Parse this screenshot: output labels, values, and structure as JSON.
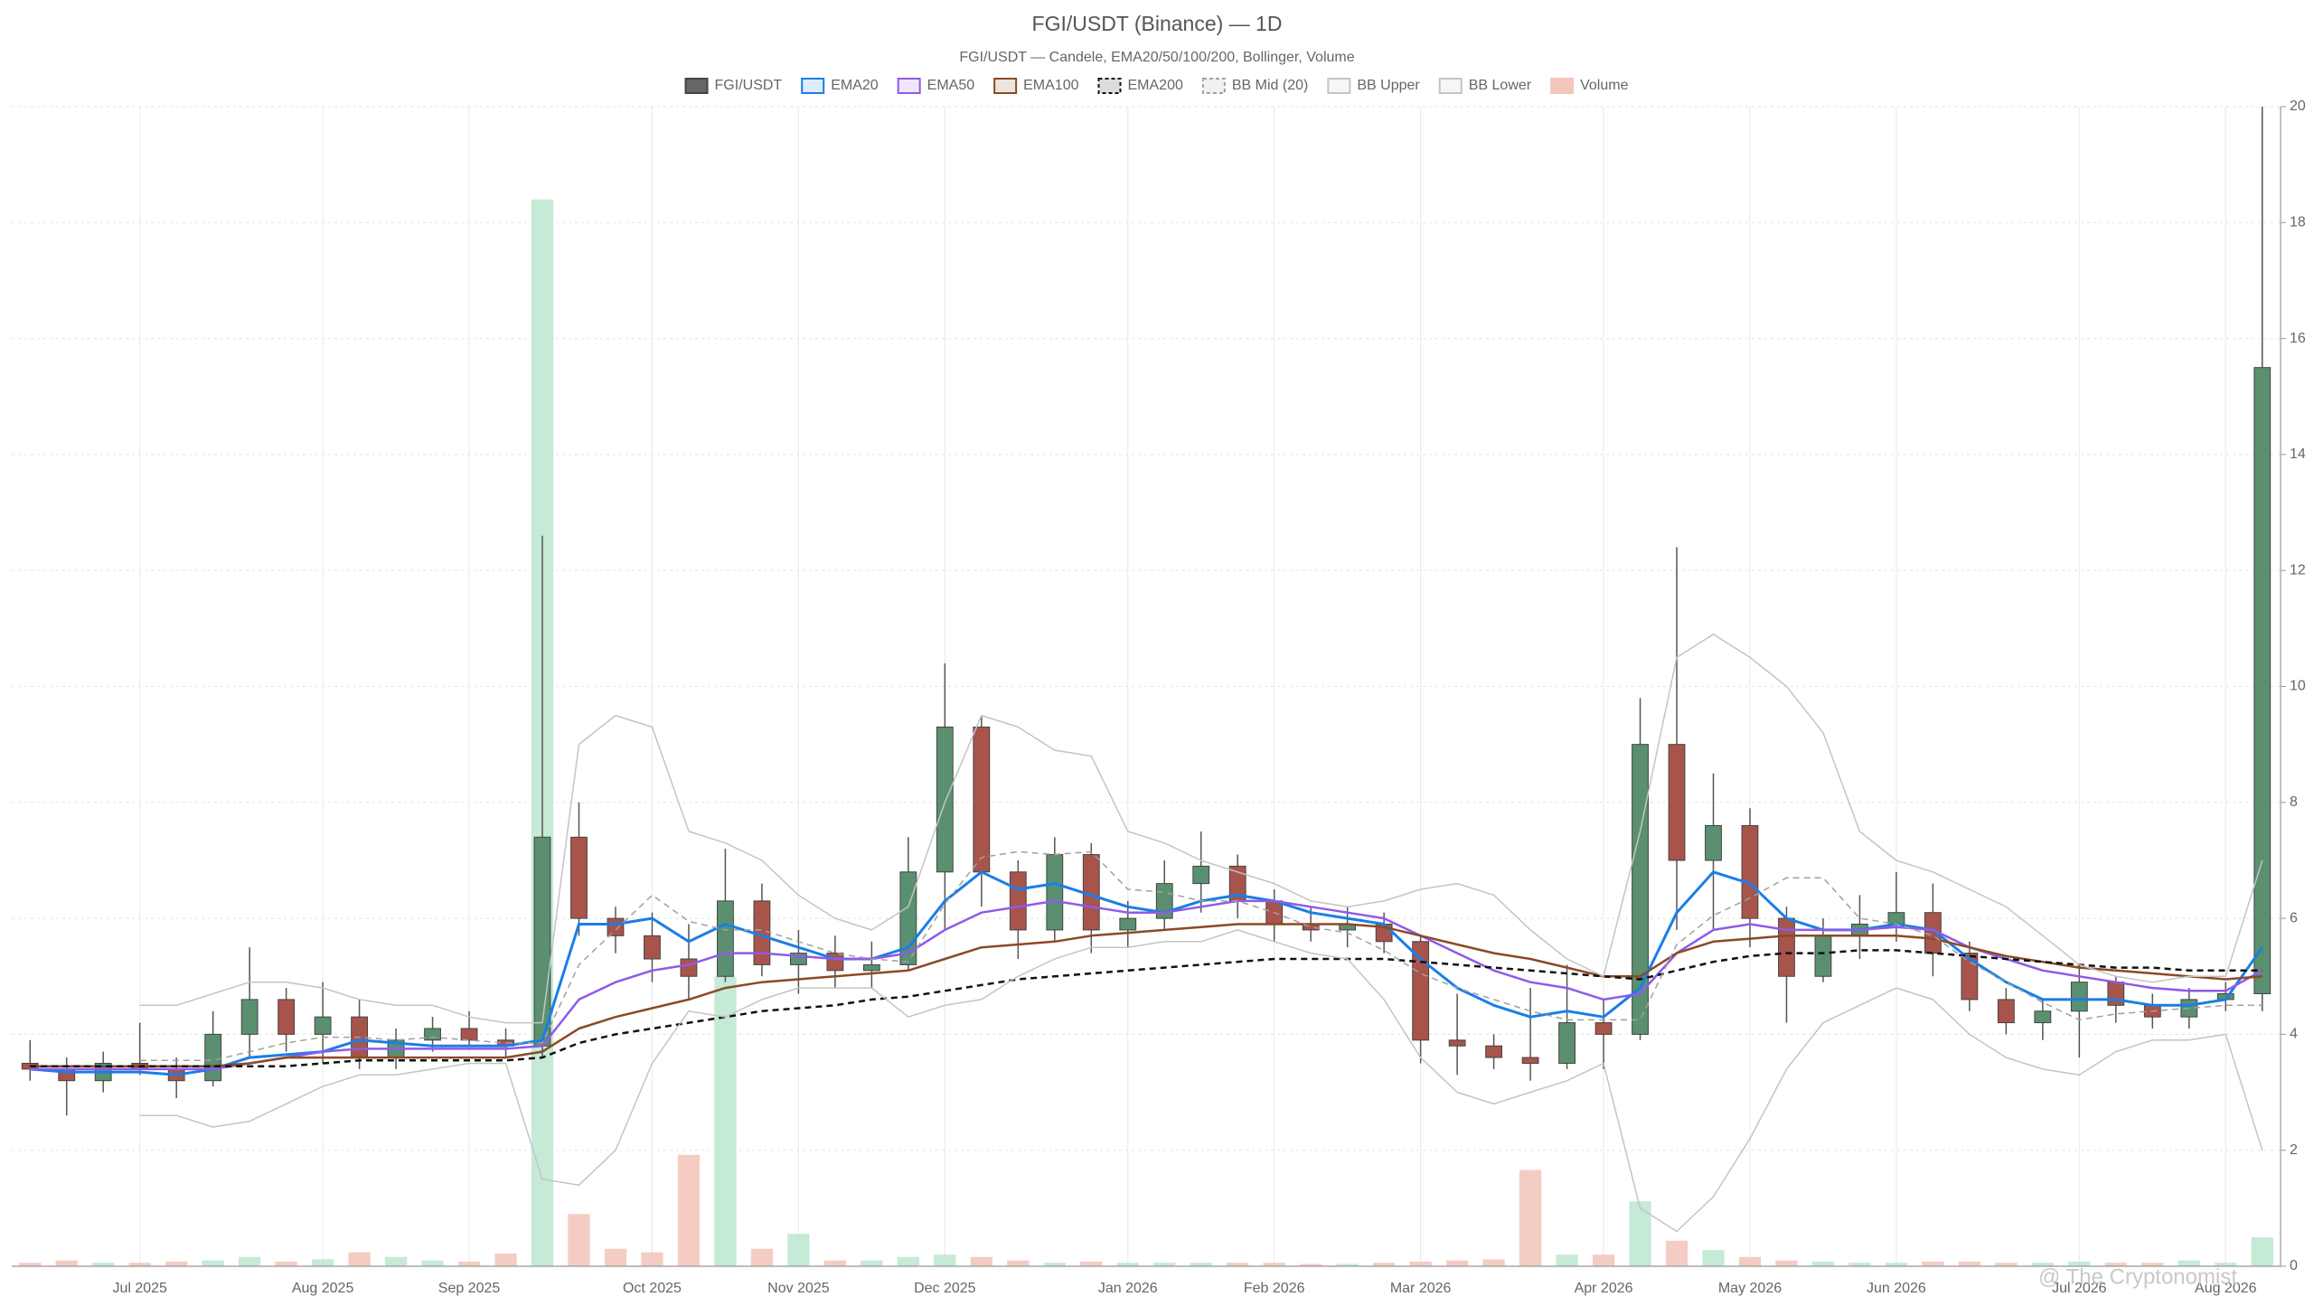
{
  "chart_data": {
    "type": "candlestick",
    "title": "FGI/USDT (Binance) — 1D",
    "subtitle": "FGI/USDT — Candele, EMA20/50/100/200, Bollinger, Volume",
    "watermark": "@ The Cryptonomist",
    "categories": [
      null,
      null,
      null,
      "Jul 2025",
      null,
      null,
      null,
      null,
      "Aug 2025",
      null,
      null,
      null,
      "Sep 2025",
      null,
      null,
      null,
      null,
      "Oct 2025",
      null,
      null,
      null,
      "Nov 2025",
      null,
      null,
      null,
      "Dec 2025",
      null,
      null,
      null,
      null,
      "Jan 2026",
      null,
      null,
      null,
      "Feb 2026",
      null,
      null,
      null,
      "Mar 2026",
      null,
      null,
      null,
      null,
      "Apr 2026",
      null,
      null,
      null,
      "May 2026",
      null,
      null,
      null,
      "Jun 2026",
      null,
      null,
      null,
      null,
      "Jul 2026",
      null,
      null,
      null,
      "Aug 2026",
      null
    ],
    "ylim": [
      0,
      20
    ],
    "yticks": [
      0,
      2,
      4,
      6,
      8,
      10,
      12,
      14,
      16,
      18,
      20
    ],
    "y2lim": [
      0,
      100
    ],
    "grid": true,
    "legend": "top",
    "series": [
      {
        "name": "FGI/USDT",
        "type": "candlestick",
        "color": "#666666",
        "up_color": "#5a9070",
        "down_color": "#a8544b",
        "open": [
          3.5,
          3.4,
          3.2,
          3.5,
          3.4,
          3.2,
          4.0,
          4.6,
          4.0,
          4.3,
          3.6,
          3.9,
          4.1,
          3.9,
          3.8,
          7.4,
          6.0,
          5.7,
          5.3,
          5.0,
          6.3,
          5.2,
          5.4,
          5.1,
          5.2,
          6.8,
          9.3,
          6.8,
          5.8,
          7.1,
          5.8,
          6.0,
          6.6,
          6.9,
          6.3,
          5.9,
          5.8,
          5.9,
          5.6,
          3.9,
          3.8,
          3.6,
          3.5,
          4.2,
          4.0,
          9.0,
          7.0,
          7.6,
          6.0,
          5.0,
          5.7,
          5.9,
          6.1,
          5.4,
          4.6,
          4.2,
          4.4,
          4.9,
          4.5,
          4.3,
          4.6,
          4.7
        ],
        "high": [
          3.9,
          3.6,
          3.7,
          4.2,
          3.6,
          4.4,
          5.5,
          4.8,
          4.9,
          4.6,
          4.1,
          4.3,
          4.4,
          4.1,
          12.6,
          8.0,
          6.2,
          6.1,
          5.9,
          7.2,
          6.6,
          5.8,
          5.7,
          5.6,
          7.4,
          10.4,
          9.5,
          7.0,
          7.4,
          7.3,
          6.3,
          7.0,
          7.5,
          7.1,
          6.5,
          6.2,
          6.2,
          6.1,
          5.7,
          4.7,
          4.0,
          4.8,
          5.2,
          4.6,
          9.8,
          12.4,
          8.5,
          7.9,
          6.2,
          6.0,
          6.4,
          6.8,
          6.6,
          5.6,
          4.8,
          4.6,
          5.2,
          5.0,
          4.7,
          4.8,
          4.9,
          20
        ],
        "low": [
          3.2,
          2.6,
          3.0,
          3.3,
          2.9,
          3.1,
          3.6,
          3.7,
          3.5,
          3.4,
          3.4,
          3.7,
          3.8,
          3.6,
          3.6,
          5.7,
          5.4,
          4.9,
          4.6,
          4.9,
          5.0,
          4.7,
          4.8,
          4.8,
          5.1,
          5.8,
          6.2,
          5.3,
          5.6,
          5.4,
          5.5,
          5.8,
          6.1,
          6.0,
          5.6,
          5.6,
          5.5,
          5.4,
          3.5,
          3.3,
          3.4,
          3.2,
          3.4,
          3.4,
          3.9,
          5.8,
          5.8,
          5.5,
          4.2,
          4.9,
          5.3,
          5.6,
          5.0,
          4.4,
          4.0,
          3.9,
          3.6,
          4.2,
          4.1,
          4.1,
          4.4,
          4.4
        ],
        "close": [
          3.4,
          3.2,
          3.5,
          3.4,
          3.2,
          4.0,
          4.6,
          4.0,
          4.3,
          3.6,
          3.9,
          4.1,
          3.9,
          3.8,
          7.4,
          6.0,
          5.7,
          5.3,
          5.0,
          6.3,
          5.2,
          5.4,
          5.1,
          5.2,
          6.8,
          9.3,
          6.8,
          5.8,
          7.1,
          5.8,
          6.0,
          6.6,
          6.9,
          6.3,
          5.9,
          5.8,
          5.9,
          5.6,
          3.9,
          3.8,
          3.6,
          3.5,
          4.2,
          4.0,
          9.0,
          7.0,
          7.6,
          6.0,
          5.0,
          5.7,
          5.9,
          6.1,
          5.4,
          4.6,
          4.2,
          4.4,
          4.9,
          4.5,
          4.3,
          4.6,
          4.7,
          15.5
        ]
      },
      {
        "name": "EMA20",
        "type": "line",
        "color": "#1a7ee6",
        "width": 3,
        "values": [
          3.4,
          3.35,
          3.35,
          3.35,
          3.3,
          3.4,
          3.6,
          3.65,
          3.7,
          3.9,
          3.85,
          3.8,
          3.8,
          3.8,
          3.9,
          5.9,
          5.9,
          6.0,
          5.6,
          5.9,
          5.7,
          5.5,
          5.3,
          5.3,
          5.5,
          6.3,
          6.8,
          6.5,
          6.6,
          6.4,
          6.2,
          6.1,
          6.3,
          6.4,
          6.3,
          6.1,
          6.0,
          5.9,
          5.3,
          4.8,
          4.5,
          4.3,
          4.4,
          4.3,
          4.8,
          6.1,
          6.8,
          6.6,
          6.0,
          5.8,
          5.8,
          5.9,
          5.8,
          5.3,
          4.9,
          4.6,
          4.6,
          4.6,
          4.5,
          4.5,
          4.6,
          5.5
        ]
      },
      {
        "name": "EMA50",
        "type": "line",
        "color": "#8f5ae8",
        "width": 2.5,
        "values": [
          3.4,
          3.4,
          3.4,
          3.4,
          3.4,
          3.4,
          3.5,
          3.6,
          3.7,
          3.75,
          3.75,
          3.75,
          3.75,
          3.75,
          3.8,
          4.6,
          4.9,
          5.1,
          5.2,
          5.4,
          5.4,
          5.35,
          5.3,
          5.3,
          5.4,
          5.8,
          6.1,
          6.2,
          6.3,
          6.2,
          6.1,
          6.1,
          6.2,
          6.3,
          6.3,
          6.2,
          6.1,
          6.0,
          5.7,
          5.4,
          5.1,
          4.9,
          4.8,
          4.6,
          4.7,
          5.4,
          5.8,
          5.9,
          5.8,
          5.8,
          5.8,
          5.85,
          5.8,
          5.5,
          5.3,
          5.1,
          5.0,
          4.9,
          4.8,
          4.75,
          4.75,
          5.1
        ]
      },
      {
        "name": "EMA100",
        "type": "line",
        "color": "#8b4a25",
        "width": 2.5,
        "values": [
          3.45,
          3.45,
          3.45,
          3.45,
          3.45,
          3.45,
          3.5,
          3.6,
          3.6,
          3.6,
          3.6,
          3.6,
          3.6,
          3.6,
          3.7,
          4.1,
          4.3,
          4.45,
          4.6,
          4.8,
          4.9,
          4.95,
          5.0,
          5.05,
          5.1,
          5.3,
          5.5,
          5.55,
          5.6,
          5.7,
          5.75,
          5.8,
          5.85,
          5.9,
          5.9,
          5.9,
          5.9,
          5.85,
          5.7,
          5.55,
          5.4,
          5.3,
          5.15,
          5.0,
          5.0,
          5.4,
          5.6,
          5.65,
          5.7,
          5.7,
          5.7,
          5.7,
          5.65,
          5.5,
          5.35,
          5.25,
          5.15,
          5.1,
          5.05,
          5.0,
          4.95,
          5.0
        ]
      },
      {
        "name": "EMA200",
        "type": "line",
        "color": "#111111",
        "width": 2.5,
        "dash": true,
        "values": [
          3.45,
          3.45,
          3.45,
          3.45,
          3.45,
          3.45,
          3.45,
          3.45,
          3.5,
          3.55,
          3.55,
          3.55,
          3.55,
          3.55,
          3.6,
          3.85,
          4.0,
          4.1,
          4.2,
          4.3,
          4.4,
          4.45,
          4.5,
          4.6,
          4.65,
          4.75,
          4.85,
          4.95,
          5.0,
          5.05,
          5.1,
          5.15,
          5.2,
          5.25,
          5.3,
          5.3,
          5.3,
          5.3,
          5.25,
          5.2,
          5.15,
          5.1,
          5.05,
          5.0,
          4.95,
          5.1,
          5.25,
          5.35,
          5.4,
          5.4,
          5.45,
          5.45,
          5.4,
          5.35,
          5.3,
          5.25,
          5.2,
          5.15,
          5.15,
          5.1,
          5.1,
          5.1
        ]
      },
      {
        "name": "BB Mid (20)",
        "type": "line",
        "color": "#a0a0a0",
        "width": 1.5,
        "dash": true,
        "values": [
          null,
          null,
          null,
          3.55,
          3.55,
          3.55,
          3.7,
          3.85,
          3.95,
          3.95,
          3.9,
          3.95,
          3.9,
          3.85,
          3.85,
          5.2,
          5.8,
          6.4,
          5.95,
          5.8,
          5.8,
          5.6,
          5.4,
          5.3,
          5.25,
          6.25,
          7.05,
          7.15,
          7.1,
          7.15,
          6.5,
          6.45,
          6.3,
          6.3,
          6.1,
          5.85,
          5.75,
          5.45,
          5.05,
          4.8,
          4.6,
          4.4,
          4.25,
          4.25,
          4.25,
          5.55,
          6.05,
          6.35,
          6.7,
          6.7,
          6.0,
          5.9,
          5.7,
          5.25,
          4.9,
          4.55,
          4.25,
          4.35,
          4.4,
          4.45,
          4.5,
          4.5
        ]
      },
      {
        "name": "BB Upper",
        "type": "line",
        "color": "#c4c4c4",
        "width": 1.5,
        "values": [
          null,
          null,
          null,
          4.5,
          4.5,
          4.7,
          4.9,
          4.9,
          4.8,
          4.6,
          4.5,
          4.5,
          4.3,
          4.2,
          4.2,
          9.0,
          9.5,
          9.3,
          7.5,
          7.3,
          7.0,
          6.4,
          6.0,
          5.8,
          6.2,
          8.0,
          9.5,
          9.3,
          8.9,
          8.8,
          7.5,
          7.3,
          7.0,
          6.8,
          6.6,
          6.3,
          6.2,
          6.3,
          6.5,
          6.6,
          6.4,
          5.8,
          5.3,
          5.0,
          7.5,
          10.5,
          10.9,
          10.5,
          10.0,
          9.2,
          7.5,
          7.0,
          6.8,
          6.5,
          6.2,
          5.7,
          5.2,
          5.0,
          4.9,
          5.0,
          5.0,
          7.0
        ]
      },
      {
        "name": "BB Lower",
        "type": "line",
        "color": "#c4c4c4",
        "width": 1.5,
        "values": [
          null,
          null,
          null,
          2.6,
          2.6,
          2.4,
          2.5,
          2.8,
          3.1,
          3.3,
          3.3,
          3.4,
          3.5,
          3.5,
          1.5,
          1.4,
          2.0,
          3.5,
          4.4,
          4.3,
          4.6,
          4.8,
          4.8,
          4.8,
          4.3,
          4.5,
          4.6,
          5.0,
          5.3,
          5.5,
          5.5,
          5.6,
          5.6,
          5.8,
          5.6,
          5.4,
          5.3,
          4.6,
          3.6,
          3.0,
          2.8,
          3.0,
          3.2,
          3.5,
          1.0,
          0.6,
          1.2,
          2.2,
          3.4,
          4.2,
          4.5,
          4.8,
          4.6,
          4.0,
          3.6,
          3.4,
          3.3,
          3.7,
          3.9,
          3.9,
          4.0,
          2.0
        ]
      },
      {
        "name": "Volume",
        "type": "bar",
        "axis": "y2",
        "color": "#f4c6bd",
        "up_color": "#bfe8d2",
        "values": [
          0.3,
          0.5,
          0.3,
          0.3,
          0.4,
          0.5,
          0.8,
          0.4,
          0.6,
          1.2,
          0.8,
          0.5,
          0.4,
          1.1,
          92,
          4.5,
          1.5,
          1.2,
          9.6,
          25,
          1.5,
          2.8,
          0.5,
          0.5,
          0.8,
          1.0,
          0.8,
          0.5,
          0.3,
          0.4,
          0.3,
          0.3,
          0.3,
          0.3,
          0.3,
          0.2,
          0.2,
          0.3,
          0.4,
          0.5,
          0.6,
          8.3,
          1.0,
          1.0,
          5.6,
          2.2,
          1.4,
          0.8,
          0.5,
          0.4,
          0.3,
          0.3,
          0.4,
          0.4,
          0.3,
          0.3,
          0.4,
          0.3,
          0.3,
          0.5,
          0.3,
          2.5
        ]
      }
    ]
  }
}
